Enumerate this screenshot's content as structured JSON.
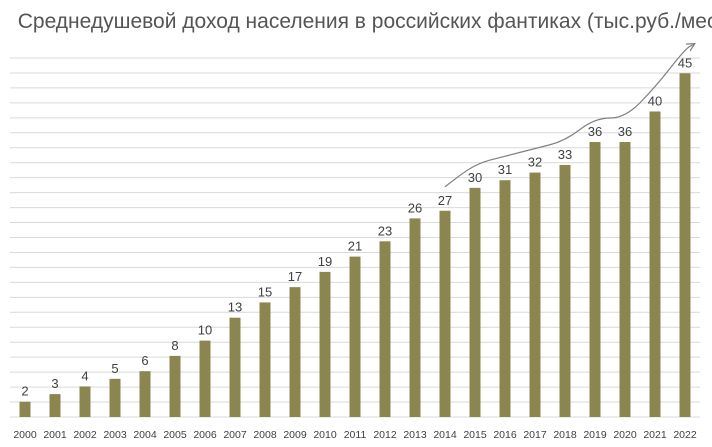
{
  "chart_data": {
    "type": "bar",
    "title": "Среднедушевой доход населения в российских фантиках (тыс.руб./мес.)",
    "xlabel": "",
    "ylabel": "",
    "categories": [
      "2000",
      "2001",
      "2002",
      "2003",
      "2004",
      "2005",
      "2006",
      "2007",
      "2008",
      "2009",
      "2010",
      "2011",
      "2012",
      "2013",
      "2014",
      "2015",
      "2016",
      "2017",
      "2018",
      "2019",
      "2020",
      "2021",
      "2022"
    ],
    "values": [
      2,
      3,
      4,
      5,
      6,
      8,
      10,
      13,
      15,
      17,
      19,
      21,
      23,
      26,
      27,
      30,
      31,
      32,
      33,
      36,
      36,
      40,
      45
    ],
    "ylim": [
      0,
      47
    ],
    "grid": true,
    "trend_arrow": true,
    "colors": {
      "bar": "#8b8550",
      "grid": "#d9d9d9",
      "trend": "#808080",
      "text": "#404040"
    }
  }
}
